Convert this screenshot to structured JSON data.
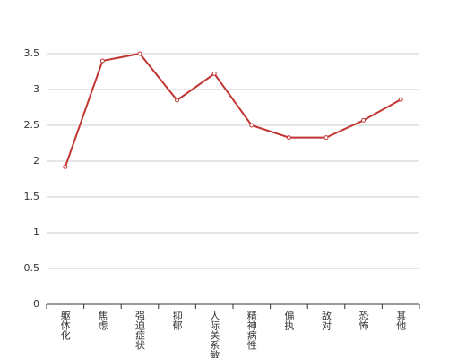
{
  "chart_data": {
    "type": "line",
    "categories": [
      "躯体化",
      "焦虑",
      "强迫症状",
      "抑郁",
      "人际关系敏感",
      "精神病性",
      "偏执",
      "敌对",
      "恐怖",
      "其他"
    ],
    "series": [
      {
        "name": null,
        "color": "#c23531",
        "values": [
          1.92,
          3.4,
          3.5,
          2.85,
          3.22,
          2.5,
          2.33,
          2.33,
          2.57,
          2.86
        ]
      }
    ],
    "ylim": [
      0,
      3.5
    ],
    "yticks": [
      0,
      0.5,
      1,
      1.5,
      2,
      2.5,
      3,
      3.5
    ],
    "grid": true
  }
}
